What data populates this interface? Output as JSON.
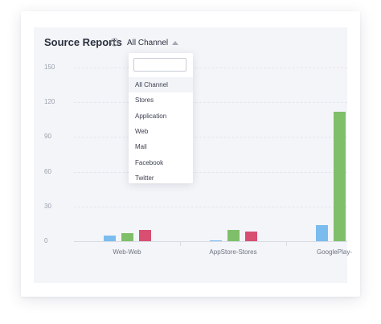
{
  "header": {
    "title": "Source Reports",
    "channel_select": {
      "value": "All Channel"
    }
  },
  "dropdown": {
    "search_value": "",
    "options": [
      "All Channel",
      "Stores",
      "Application",
      "Web",
      "Mail",
      "Facebook",
      "Twitter"
    ],
    "selected": "All Channel"
  },
  "chart_data": {
    "type": "bar",
    "title": "Source Reports",
    "categories": [
      "Web-Web",
      "AppStore-Stores",
      "GooglePlay-"
    ],
    "series": [
      {
        "values": [
          5,
          1,
          14
        ],
        "color": "#7bbcef"
      },
      {
        "values": [
          7,
          10,
          112
        ],
        "color": "#7fbf6a"
      },
      {
        "values": [
          10,
          8,
          null
        ],
        "color": "#d84f72"
      }
    ],
    "yticks": [
      0,
      30,
      60,
      90,
      120,
      150
    ],
    "ylim": [
      0,
      150
    ],
    "grid": true
  }
}
